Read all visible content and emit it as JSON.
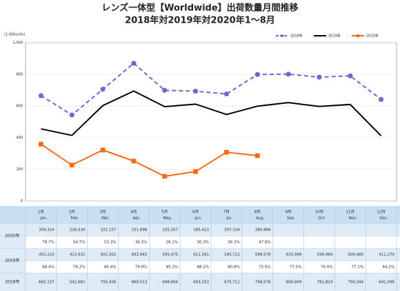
{
  "chart_data": {
    "type": "line",
    "title": "レンズ一体型【Worldwide】出荷数量月間推移",
    "subtitle": "2018年対2019年対2020年1～8月",
    "unit_label": "(1,000units)",
    "categories": [
      "1月",
      "2月",
      "3月",
      "4月",
      "5月",
      "6月",
      "7月",
      "8月",
      "9月",
      "10月",
      "11月",
      "12月"
    ],
    "categories_en": [
      "Jan.",
      "Feb.",
      "Mar.",
      "Apr.",
      "May.",
      "Jun.",
      "Jul.",
      "Aug.",
      "Sep.",
      "Oct.",
      "Nov.",
      "Dec."
    ],
    "ylim": [
      0,
      1000
    ],
    "yticks": [
      0,
      200,
      400,
      600,
      800,
      {
        "value": 1000,
        "label": "1,000"
      }
    ],
    "grid": true,
    "legend": "top-right",
    "series": [
      {
        "name": "2018年",
        "color": "#6a6ad0",
        "dash": true,
        "marker": "circle",
        "values": [
          665.137,
          542.981,
          705.436,
          869.513,
          698.894,
          693.253,
          675.711,
          798.576,
          800.809,
          781.824,
          790.344,
          641.096
        ],
        "value_labels": [
          "665,137",
          "542,981",
          "705,436",
          "869,513",
          "698,894",
          "693,253",
          "675,711",
          "798,576",
          "800,809",
          "781,824",
          "790,344",
          "641,096"
        ]
      },
      {
        "name": "2019年",
        "color": "#000000",
        "dash": false,
        "marker": null,
        "values": [
          455.21,
          413.931,
          602.301,
          693.945,
          595.475,
          611.581,
          545.721,
          598.576,
          620.999,
          596.969,
          609.485,
          411.274
        ],
        "value_labels": [
          "455,210",
          "413,931",
          "602,301",
          "693,945",
          "595,475",
          "611,581",
          "545,721",
          "598,576",
          "620,999",
          "596,969",
          "609,485",
          "411,274"
        ],
        "ratios": [
          "68.4%",
          "76.2%",
          "85.4%",
          "79.8%",
          "85.2%",
          "88.2%",
          "80.8%",
          "75.0%",
          "77.5%",
          "76.4%",
          "77.1%",
          "64.2%"
        ]
      },
      {
        "name": "2020年",
        "color": "#ff6a10",
        "dash": false,
        "marker": "square",
        "values": [
          358.316,
          226.53,
          321.157,
          251.898,
          155.207,
          185.423,
          307.324,
          285.866,
          null,
          null,
          null,
          null
        ],
        "value_labels": [
          "358,316",
          "226,530",
          "321,157",
          "251,898",
          "155,207",
          "185,423",
          "307,324",
          "285,866",
          null,
          null,
          null,
          null
        ],
        "ratios": [
          "78.7%",
          "54.7%",
          "53.3%",
          "36.3%",
          "26.1%",
          "30.3%",
          "56.3%",
          "47.8%",
          null,
          null,
          null,
          null
        ]
      }
    ]
  }
}
